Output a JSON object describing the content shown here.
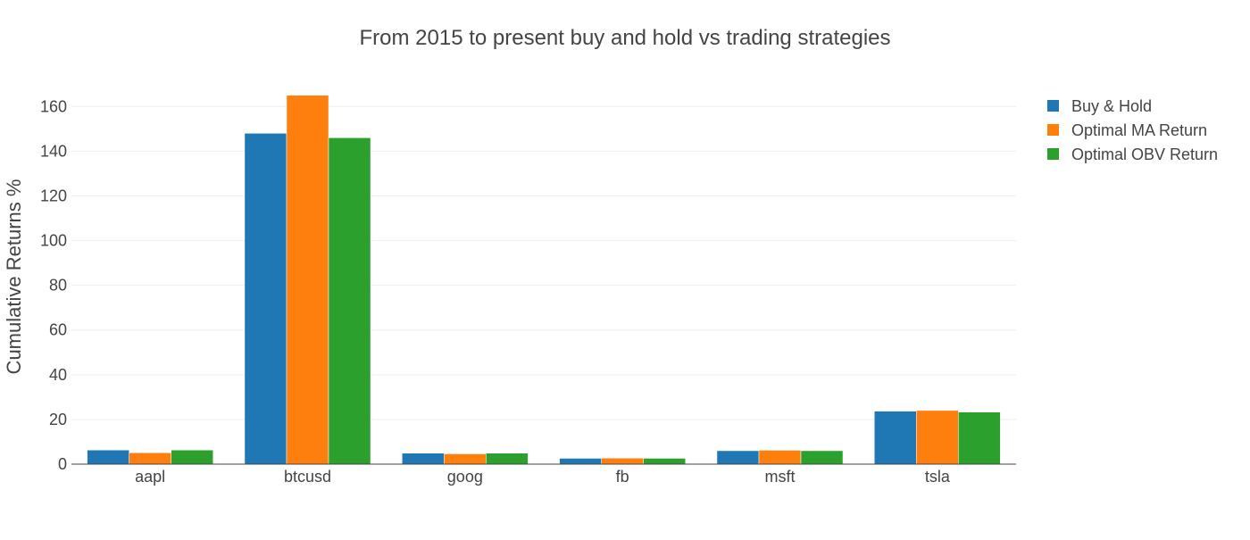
{
  "chart_data": {
    "type": "bar",
    "title": "From 2015 to present buy and hold vs trading strategies",
    "xlabel": "",
    "ylabel": "Cumulative Returns %",
    "categories": [
      "aapl",
      "btcusd",
      "goog",
      "fb",
      "msft",
      "tsla"
    ],
    "series": [
      {
        "name": "Buy & Hold",
        "color": "#1f77b4",
        "values": [
          6.3,
          148,
          4.9,
          2.6,
          6.0,
          23.7
        ]
      },
      {
        "name": "Optimal MA Return",
        "color": "#ff7f0e",
        "values": [
          5.1,
          165,
          4.6,
          2.7,
          6.2,
          24.0
        ]
      },
      {
        "name": "Optimal OBV Return",
        "color": "#2ca02c",
        "values": [
          6.3,
          146,
          4.9,
          2.6,
          6.0,
          23.3
        ]
      }
    ],
    "ylim": [
      0,
      173.7
    ],
    "yticks": [
      0,
      20,
      40,
      60,
      80,
      100,
      120,
      140,
      160
    ],
    "grid": true,
    "legend_position": "top-right"
  }
}
